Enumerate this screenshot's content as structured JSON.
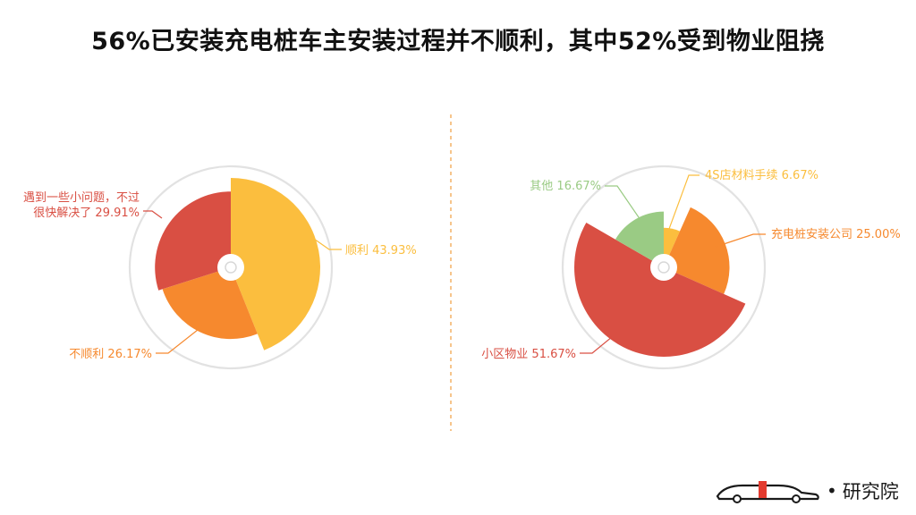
{
  "title": "56%已安装充电桩车主安装过程并不顺利，其中52%受到物业阻挠",
  "brand": {
    "logo_text": "研究院"
  },
  "chart_data": [
    {
      "type": "pie",
      "variant": "rose",
      "slices": [
        {
          "label": "顺利",
          "value": 43.93,
          "display": "43.93%",
          "color": "#FBBE3E"
        },
        {
          "label": "不顺利",
          "value": 26.17,
          "display": "26.17%",
          "color": "#F6892E"
        },
        {
          "label": "遇到一些小问题，不过很快解决了",
          "label_lines": [
            "遇到一些小问题，不过",
            "很快解决了"
          ],
          "value": 29.91,
          "display": "29.91%",
          "color": "#D94F43"
        }
      ]
    },
    {
      "type": "pie",
      "variant": "rose",
      "slices": [
        {
          "label": "4S店材料手续",
          "value": 6.67,
          "display": "6.67%",
          "color": "#FBBE3E"
        },
        {
          "label": "充电桩安装公司",
          "value": 25.0,
          "display": "25.00%",
          "color": "#F6892E"
        },
        {
          "label": "小区物业",
          "value": 51.67,
          "display": "51.67%",
          "color": "#D94F43"
        },
        {
          "label": "其他",
          "value": 16.67,
          "display": "16.67%",
          "color": "#9ACB84"
        }
      ]
    }
  ]
}
